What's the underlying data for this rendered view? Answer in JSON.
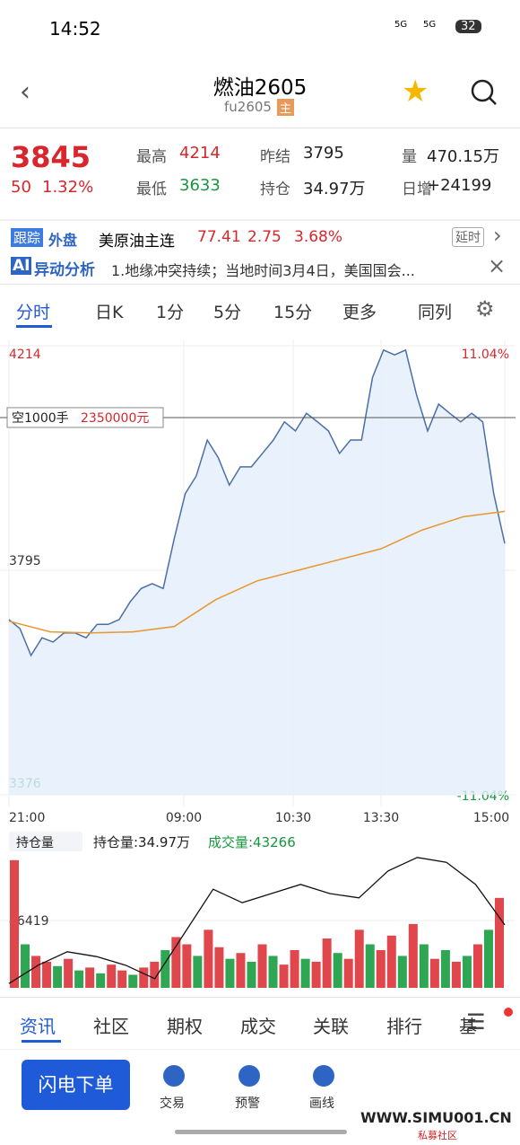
{
  "status_bar": {
    "time": "14:52",
    "net1": "5G",
    "net2": "5G",
    "battery": "32"
  },
  "header": {
    "title": "燃油2605",
    "code": "fu2605",
    "badge": "主"
  },
  "quote": {
    "price": "3845",
    "change": "50",
    "pct": "1.32%",
    "stats": [
      {
        "label": "最高",
        "value": "4214"
      },
      {
        "label": "昨结",
        "value": "3795"
      },
      {
        "label": "量",
        "value": "470.15万"
      },
      {
        "label": "最低",
        "value": "3633"
      },
      {
        "label": "持仓",
        "value": "34.97万"
      },
      {
        "label": "日增",
        "value": "+24199"
      }
    ]
  },
  "ticker": {
    "tag1": "跟踪",
    "tag2": "外盘",
    "name": "美原油主连",
    "price": "77.41",
    "change": "2.75",
    "pct": "3.68%",
    "delay": "延时"
  },
  "ai": {
    "badge": "AI",
    "title": "异动分析",
    "text": "1.地缘冲突持续；当地时间3月4日，美国国会..."
  },
  "tabs": [
    "分时",
    "日K",
    "1分",
    "5分",
    "15分",
    "更多",
    "同列"
  ],
  "intraday": {
    "ylim": [
      3376,
      4214
    ],
    "yticks": [
      4214,
      3795,
      3376
    ],
    "pct_top": "11.04%",
    "pct_bottom": "-11.04%",
    "order_label": "空1000手",
    "order_amount": "2350000元",
    "order_price": 4080,
    "x_labels": [
      "21:00",
      "09:00",
      "10:30",
      "13:30",
      "15:00"
    ],
    "price": [
      3703,
      3686,
      3636,
      3669,
      3661,
      3678,
      3678,
      3669,
      3694,
      3694,
      3703,
      3736,
      3761,
      3770,
      3761,
      3854,
      3938,
      3971,
      4038,
      4005,
      3954,
      3988,
      3988,
      4013,
      4038,
      4072,
      4055,
      4088,
      4072,
      4055,
      4013,
      4038,
      4038,
      4155,
      4206,
      4197,
      4206,
      4122,
      4055,
      4105,
      4088,
      4072,
      4088,
      4072,
      3938,
      3845
    ],
    "avg": [
      3700,
      3680,
      3678,
      3680,
      3690,
      3740,
      3775,
      3795,
      3815,
      3835,
      3870,
      3895,
      3905
    ],
    "line_color": "#4a6fa8",
    "avg_color": "#e8962e"
  },
  "volume": {
    "oi_label": "持仓量",
    "oi_text": "持仓量:34.97万",
    "vol_text": "成交量:43266",
    "ylim": [
      0,
      92838
    ],
    "yticks": [
      46419
    ],
    "values": [
      88000,
      30000,
      22000,
      18000,
      15000,
      20000,
      12000,
      14000,
      10000,
      16000,
      12000,
      9000,
      14000,
      18000,
      26000,
      35000,
      30000,
      22000,
      40000,
      28000,
      20000,
      24000,
      18000,
      30000,
      22000,
      16000,
      26000,
      20000,
      18000,
      34000,
      24000,
      20000,
      40000,
      30000,
      26000,
      36000,
      22000,
      44000,
      30000,
      20000,
      26000,
      18000,
      22000,
      30000,
      40000,
      62000
    ],
    "up": [
      true,
      false,
      true,
      true,
      false,
      true,
      false,
      true,
      false,
      true,
      true,
      false,
      true,
      true,
      false,
      true,
      true,
      false,
      true,
      true,
      false,
      true,
      false,
      true,
      false,
      true,
      true,
      false,
      true,
      true,
      false,
      true,
      true,
      false,
      true,
      true,
      false,
      true,
      false,
      true,
      false,
      true,
      false,
      true,
      false,
      true
    ],
    "oi": [
      33.09,
      33.47,
      33.75,
      33.65,
      33.47,
      33.19,
      34.12,
      35.05,
      34.77,
      34.96,
      35.15,
      34.96,
      34.87,
      35.43,
      35.71,
      35.61,
      35.15,
      34.31
    ],
    "oi_lim": [
      33,
      35.8
    ]
  },
  "bottom_tabs": [
    "资讯",
    "社区",
    "期权",
    "成交",
    "关联",
    "排行",
    "基"
  ],
  "actions": {
    "order": "闪电下单",
    "items": [
      "交易",
      "预警",
      "画线"
    ]
  },
  "watermark": {
    "site": "WWW.SIMU001.CN",
    "name": "私募社区"
  }
}
